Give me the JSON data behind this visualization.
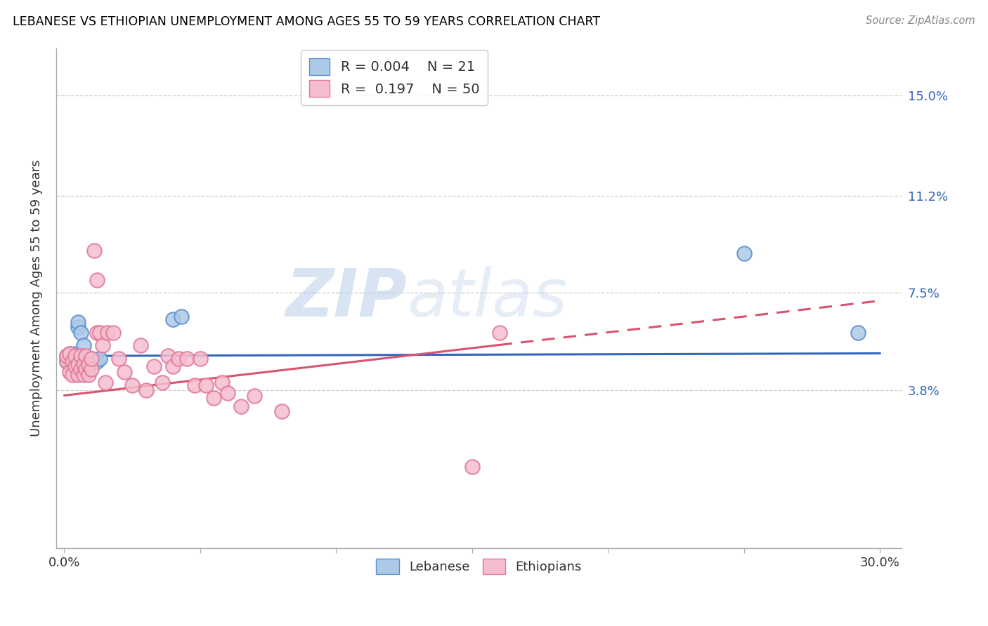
{
  "title": "LEBANESE VS ETHIOPIAN UNEMPLOYMENT AMONG AGES 55 TO 59 YEARS CORRELATION CHART",
  "source": "Source: ZipAtlas.com",
  "ylabel": "Unemployment Among Ages 55 to 59 years",
  "xlim": [
    -0.003,
    0.308
  ],
  "ylim": [
    -0.022,
    0.168
  ],
  "xtick_positions": [
    0.0,
    0.05,
    0.1,
    0.15,
    0.2,
    0.25,
    0.3
  ],
  "xticklabels": [
    "0.0%",
    "",
    "",
    "",
    "",
    "",
    "30.0%"
  ],
  "ytick_positions": [
    0.038,
    0.075,
    0.112,
    0.15
  ],
  "ytick_labels": [
    "3.8%",
    "7.5%",
    "11.2%",
    "15.0%"
  ],
  "legend_r_lebanese": "0.004",
  "legend_n_lebanese": "21",
  "legend_r_ethiopians": "0.197",
  "legend_n_ethiopians": "50",
  "watermark": "ZIPAtlas",
  "lebanese_color": "#adc9e8",
  "lebanese_edge": "#5b8fc9",
  "ethiopians_color": "#f5bece",
  "ethiopians_edge": "#e07898",
  "trend_lebanese_color": "#3366bb",
  "trend_ethiopians_color": "#d9536e",
  "lebanese_x": [
    0.001,
    0.001,
    0.002,
    0.002,
    0.003,
    0.003,
    0.004,
    0.004,
    0.005,
    0.005,
    0.006,
    0.007,
    0.008,
    0.009,
    0.01,
    0.012,
    0.013,
    0.04,
    0.043,
    0.25,
    0.292
  ],
  "lebanese_y": [
    0.049,
    0.051,
    0.048,
    0.052,
    0.049,
    0.05,
    0.05,
    0.052,
    0.062,
    0.064,
    0.06,
    0.055,
    0.047,
    0.047,
    0.05,
    0.049,
    0.05,
    0.065,
    0.066,
    0.09,
    0.06
  ],
  "ethiopians_x": [
    0.001,
    0.001,
    0.002,
    0.002,
    0.003,
    0.003,
    0.004,
    0.004,
    0.005,
    0.005,
    0.006,
    0.006,
    0.007,
    0.007,
    0.008,
    0.008,
    0.009,
    0.009,
    0.01,
    0.01,
    0.011,
    0.012,
    0.012,
    0.013,
    0.014,
    0.015,
    0.016,
    0.018,
    0.02,
    0.022,
    0.025,
    0.028,
    0.03,
    0.033,
    0.036,
    0.038,
    0.04,
    0.042,
    0.045,
    0.048,
    0.05,
    0.052,
    0.055,
    0.058,
    0.06,
    0.065,
    0.07,
    0.08,
    0.15,
    0.16
  ],
  "ethiopians_y": [
    0.049,
    0.051,
    0.045,
    0.052,
    0.044,
    0.049,
    0.047,
    0.051,
    0.044,
    0.048,
    0.046,
    0.051,
    0.044,
    0.048,
    0.046,
    0.051,
    0.044,
    0.048,
    0.046,
    0.05,
    0.091,
    0.08,
    0.06,
    0.06,
    0.055,
    0.041,
    0.06,
    0.06,
    0.05,
    0.045,
    0.04,
    0.055,
    0.038,
    0.047,
    0.041,
    0.051,
    0.047,
    0.05,
    0.05,
    0.04,
    0.05,
    0.04,
    0.035,
    0.041,
    0.037,
    0.032,
    0.036,
    0.03,
    0.009,
    0.06
  ],
  "trend_leb_x0": 0.0,
  "trend_leb_x1": 0.3,
  "trend_leb_y0": 0.051,
  "trend_leb_y1": 0.052,
  "trend_eth_x0": 0.0,
  "trend_eth_x1": 0.3,
  "trend_eth_y0": 0.036,
  "trend_eth_y1": 0.072,
  "trend_eth_solid_end": 0.16,
  "trend_eth_dashed_start": 0.16
}
